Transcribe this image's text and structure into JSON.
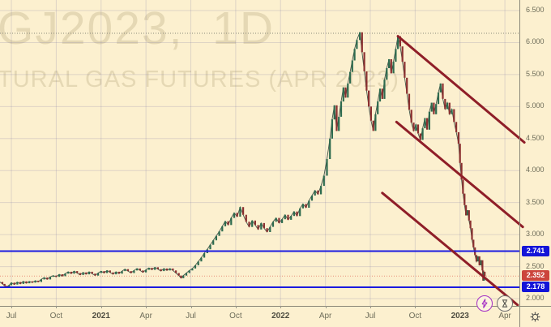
{
  "watermark": {
    "symbol": "GJ2023,  1D",
    "description": "TURAL GAS FUTURES (APR 2023)"
  },
  "colors": {
    "background": "#fcf0cf",
    "grid": "rgba(120,115,165,0.22)",
    "axis_border": "#8a8878",
    "axis_text": "#6e6d5a",
    "candle_up": "#2e6b4f",
    "candle_down": "#8b3030",
    "wick": "#44554a",
    "blue_line": "#1b1be0",
    "blue_label_bg": "#1414d8",
    "last_price_label_bg": "#cc453c",
    "last_price_line": "#e8907a",
    "dotted_high_line": "#8a877a",
    "trendline": "#8f1e28",
    "bolt_icon": "#a32cc4",
    "gray_icon": "#555550"
  },
  "chart_data": {
    "type": "candlestick",
    "title": "GJ2023, 1D",
    "subtitle": "TURAL GAS FUTURES (APR 2023)",
    "x_unit": "months since Jul 2020",
    "xlim": [
      -0.76,
      33.97
    ],
    "ylim": [
      1.886,
      6.665
    ],
    "grid": true,
    "x_ticks": [
      {
        "pos": 0,
        "label": "Jul",
        "bold": false
      },
      {
        "pos": 3,
        "label": "Oct",
        "bold": false
      },
      {
        "pos": 6,
        "label": "2021",
        "bold": true
      },
      {
        "pos": 9,
        "label": "Apr",
        "bold": false
      },
      {
        "pos": 12,
        "label": "Jul",
        "bold": false
      },
      {
        "pos": 15,
        "label": "Oct",
        "bold": false
      },
      {
        "pos": 18,
        "label": "2022",
        "bold": true
      },
      {
        "pos": 21,
        "label": "Apr",
        "bold": false
      },
      {
        "pos": 24,
        "label": "Jul",
        "bold": false
      },
      {
        "pos": 27,
        "label": "Oct",
        "bold": false
      },
      {
        "pos": 30,
        "label": "2023",
        "bold": true
      },
      {
        "pos": 33,
        "label": "Apr",
        "bold": false
      }
    ],
    "y_ticks": [
      {
        "value": 6.5,
        "label": "6.500"
      },
      {
        "value": 6.0,
        "label": "6.000"
      },
      {
        "value": 5.5,
        "label": "5.500"
      },
      {
        "value": 5.0,
        "label": "5.000"
      },
      {
        "value": 4.5,
        "label": "4.500"
      },
      {
        "value": 4.0,
        "label": "4.000"
      },
      {
        "value": 3.5,
        "label": "3.500"
      },
      {
        "value": 3.0,
        "label": "3.000"
      },
      {
        "value": 2.5,
        "label": "2.500"
      },
      {
        "value": 2.0,
        "label": "2.000"
      }
    ],
    "hlines": [
      {
        "price": 6.145,
        "style": "dotted",
        "color": "#8a877a",
        "label": null,
        "label_bg": null,
        "name": "high-dotted-line"
      },
      {
        "price": 2.741,
        "style": "solid",
        "color": "#1b1be0",
        "label": "2.741",
        "label_bg": "#1414d8",
        "name": "support-line-2741"
      },
      {
        "price": 2.352,
        "style": "dotted",
        "color": "#e8907a",
        "label": "2.352",
        "label_bg": "#cc453c",
        "name": "last-price-line"
      },
      {
        "price": 2.178,
        "style": "solid",
        "color": "#1b1be0",
        "label": "2.178",
        "label_bg": "#1414d8",
        "name": "support-line-2178"
      }
    ],
    "last_price": "2.352",
    "trendlines": [
      [
        25.85,
        6.1,
        34.3,
        4.44
      ],
      [
        25.75,
        4.76,
        34.2,
        3.12
      ],
      [
        24.8,
        3.65,
        33.85,
        1.9
      ]
    ],
    "series": [
      [
        -0.76,
        2.26
      ],
      [
        -0.6,
        2.23
      ],
      [
        -0.45,
        2.2
      ],
      [
        -0.3,
        2.18
      ],
      [
        -0.15,
        2.21
      ],
      [
        0,
        2.25
      ],
      [
        0.2,
        2.22
      ],
      [
        0.4,
        2.26
      ],
      [
        0.6,
        2.23
      ],
      [
        0.8,
        2.27
      ],
      [
        1.0,
        2.24
      ],
      [
        1.2,
        2.27
      ],
      [
        1.4,
        2.25
      ],
      [
        1.6,
        2.28
      ],
      [
        1.8,
        2.26
      ],
      [
        2.0,
        2.3
      ],
      [
        2.2,
        2.33
      ],
      [
        2.4,
        2.3
      ],
      [
        2.6,
        2.34
      ],
      [
        2.8,
        2.36
      ],
      [
        3.0,
        2.34
      ],
      [
        3.2,
        2.38
      ],
      [
        3.4,
        2.35
      ],
      [
        3.6,
        2.39
      ],
      [
        3.8,
        2.42
      ],
      [
        4.0,
        2.39
      ],
      [
        4.2,
        2.43
      ],
      [
        4.4,
        2.4
      ],
      [
        4.6,
        2.37
      ],
      [
        4.8,
        2.41
      ],
      [
        5.0,
        2.38
      ],
      [
        5.2,
        2.42
      ],
      [
        5.4,
        2.39
      ],
      [
        5.6,
        2.36
      ],
      [
        5.8,
        2.4
      ],
      [
        6.0,
        2.43
      ],
      [
        6.2,
        2.4
      ],
      [
        6.4,
        2.44
      ],
      [
        6.6,
        2.41
      ],
      [
        6.8,
        2.38
      ],
      [
        7.0,
        2.42
      ],
      [
        7.2,
        2.39
      ],
      [
        7.4,
        2.43
      ],
      [
        7.6,
        2.46
      ],
      [
        7.8,
        2.43
      ],
      [
        8.0,
        2.4
      ],
      [
        8.2,
        2.44
      ],
      [
        8.4,
        2.47
      ],
      [
        8.6,
        2.44
      ],
      [
        8.8,
        2.41
      ],
      [
        9.0,
        2.45
      ],
      [
        9.2,
        2.48
      ],
      [
        9.4,
        2.45
      ],
      [
        9.6,
        2.49
      ],
      [
        9.8,
        2.46
      ],
      [
        10.0,
        2.43
      ],
      [
        10.2,
        2.47
      ],
      [
        10.4,
        2.44
      ],
      [
        10.6,
        2.47
      ],
      [
        10.8,
        2.44
      ],
      [
        11.0,
        2.4
      ],
      [
        11.2,
        2.36
      ],
      [
        11.35,
        2.32
      ],
      [
        11.5,
        2.36
      ],
      [
        11.7,
        2.4
      ],
      [
        11.9,
        2.44
      ],
      [
        12.1,
        2.47
      ],
      [
        12.3,
        2.52
      ],
      [
        12.5,
        2.58
      ],
      [
        12.7,
        2.64
      ],
      [
        12.9,
        2.71
      ],
      [
        13.1,
        2.77
      ],
      [
        13.3,
        2.84
      ],
      [
        13.5,
        2.91
      ],
      [
        13.7,
        2.98
      ],
      [
        13.9,
        3.05
      ],
      [
        14.1,
        3.13
      ],
      [
        14.3,
        3.21
      ],
      [
        14.5,
        3.15
      ],
      [
        14.7,
        3.26
      ],
      [
        14.9,
        3.34
      ],
      [
        15.1,
        3.28
      ],
      [
        15.3,
        3.43
      ],
      [
        15.5,
        3.31
      ],
      [
        15.7,
        3.2
      ],
      [
        15.9,
        3.12
      ],
      [
        16.1,
        3.22
      ],
      [
        16.3,
        3.15
      ],
      [
        16.5,
        3.08
      ],
      [
        16.7,
        3.18
      ],
      [
        16.9,
        3.1
      ],
      [
        17.1,
        3.04
      ],
      [
        17.3,
        3.12
      ],
      [
        17.5,
        3.2
      ],
      [
        17.7,
        3.26
      ],
      [
        17.9,
        3.18
      ],
      [
        18.1,
        3.24
      ],
      [
        18.3,
        3.31
      ],
      [
        18.5,
        3.23
      ],
      [
        18.7,
        3.29
      ],
      [
        18.9,
        3.36
      ],
      [
        19.1,
        3.29
      ],
      [
        19.3,
        3.41
      ],
      [
        19.5,
        3.48
      ],
      [
        19.7,
        3.42
      ],
      [
        19.9,
        3.53
      ],
      [
        20.1,
        3.61
      ],
      [
        20.3,
        3.69
      ],
      [
        20.5,
        3.63
      ],
      [
        20.7,
        3.76
      ],
      [
        20.9,
        3.92
      ],
      [
        21.1,
        4.18
      ],
      [
        21.3,
        4.5
      ],
      [
        21.45,
        4.8
      ],
      [
        21.6,
        5.02
      ],
      [
        21.75,
        4.62
      ],
      [
        21.9,
        4.84
      ],
      [
        22.05,
        5.08
      ],
      [
        22.2,
        5.3
      ],
      [
        22.35,
        5.14
      ],
      [
        22.5,
        5.36
      ],
      [
        22.65,
        5.54
      ],
      [
        22.8,
        5.72
      ],
      [
        22.95,
        5.9
      ],
      [
        23.1,
        6.04
      ],
      [
        23.3,
        6.16
      ],
      [
        23.45,
        5.85
      ],
      [
        23.6,
        5.55
      ],
      [
        23.75,
        5.25
      ],
      [
        23.9,
        5.0
      ],
      [
        24.05,
        4.78
      ],
      [
        24.2,
        4.62
      ],
      [
        24.35,
        4.88
      ],
      [
        24.5,
        5.08
      ],
      [
        24.65,
        5.28
      ],
      [
        24.8,
        5.12
      ],
      [
        24.95,
        5.42
      ],
      [
        25.1,
        5.6
      ],
      [
        25.25,
        5.74
      ],
      [
        25.4,
        5.52
      ],
      [
        25.55,
        5.7
      ],
      [
        25.7,
        5.9
      ],
      [
        25.85,
        6.1
      ],
      [
        26.0,
        5.94
      ],
      [
        26.15,
        5.7
      ],
      [
        26.3,
        5.45
      ],
      [
        26.45,
        5.2
      ],
      [
        26.6,
        4.95
      ],
      [
        26.75,
        4.75
      ],
      [
        26.9,
        4.62
      ],
      [
        27.05,
        4.72
      ],
      [
        27.2,
        4.58
      ],
      [
        27.35,
        4.48
      ],
      [
        27.5,
        4.66
      ],
      [
        27.65,
        4.82
      ],
      [
        27.8,
        4.64
      ],
      [
        27.95,
        4.92
      ],
      [
        28.1,
        5.06
      ],
      [
        28.25,
        4.88
      ],
      [
        28.4,
        5.04
      ],
      [
        28.55,
        5.22
      ],
      [
        28.7,
        5.36
      ],
      [
        28.85,
        5.12
      ],
      [
        29.0,
        4.96
      ],
      [
        29.15,
        5.06
      ],
      [
        29.3,
        4.88
      ],
      [
        29.45,
        4.96
      ],
      [
        29.6,
        4.76
      ],
      [
        29.75,
        4.6
      ],
      [
        29.9,
        4.42
      ],
      [
        30.0,
        4.12
      ],
      [
        30.1,
        3.86
      ],
      [
        30.2,
        3.64
      ],
      [
        30.3,
        3.46
      ],
      [
        30.4,
        3.3
      ],
      [
        30.5,
        3.38
      ],
      [
        30.6,
        3.22
      ],
      [
        30.7,
        3.1
      ],
      [
        30.8,
        2.92
      ],
      [
        30.9,
        2.8
      ],
      [
        31.0,
        2.68
      ],
      [
        31.1,
        2.58
      ],
      [
        31.2,
        2.66
      ],
      [
        31.3,
        2.52
      ],
      [
        31.4,
        2.6
      ],
      [
        31.5,
        2.44
      ],
      [
        31.55,
        2.28
      ],
      [
        31.6,
        2.42
      ],
      [
        31.65,
        2.35
      ]
    ]
  }
}
